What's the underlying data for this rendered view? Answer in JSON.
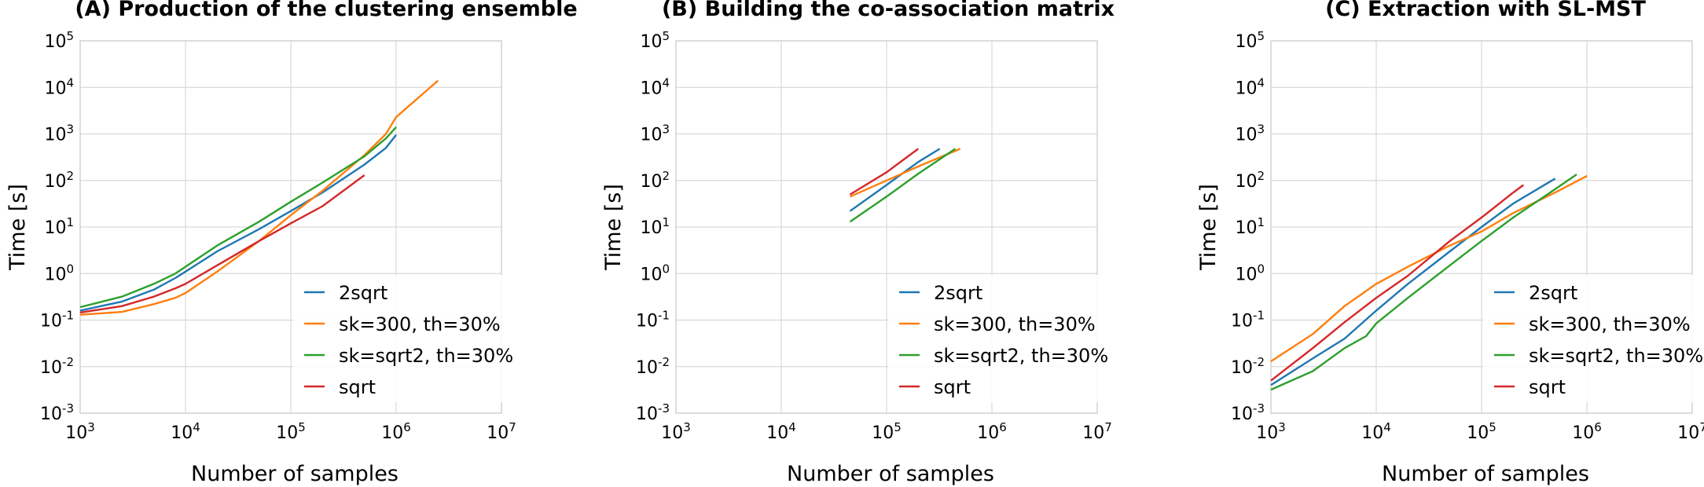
{
  "chart_data": [
    {
      "type": "line",
      "title": "(A) Production of the clustering ensemble",
      "xlabel": "Number of samples",
      "ylabel": "Time [s]",
      "xscale": "log",
      "yscale": "log",
      "xlim": [
        1000,
        10000000
      ],
      "ylim": [
        0.001,
        100000
      ],
      "xticks": [
        {
          "b": "10",
          "e": "3"
        },
        {
          "b": "10",
          "e": "4"
        },
        {
          "b": "10",
          "e": "5"
        },
        {
          "b": "10",
          "e": "6"
        },
        {
          "b": "10",
          "e": "7"
        }
      ],
      "yticks": [
        {
          "b": "10",
          "e": "-3"
        },
        {
          "b": "10",
          "e": "-2"
        },
        {
          "b": "10",
          "e": "-1"
        },
        {
          "b": "10",
          "e": "0"
        },
        {
          "b": "10",
          "e": "1"
        },
        {
          "b": "10",
          "e": "2"
        },
        {
          "b": "10",
          "e": "3"
        },
        {
          "b": "10",
          "e": "4"
        },
        {
          "b": "10",
          "e": "5"
        }
      ],
      "grid": true,
      "legend_position": "lower-right",
      "series": [
        {
          "name": "2sqrt",
          "color": "#1f77b4",
          "x": [
            1000,
            2500,
            5000,
            8000,
            10000,
            20000,
            50000,
            100000,
            200000,
            500000,
            800000,
            1000000
          ],
          "y": [
            0.16,
            0.25,
            0.45,
            0.8,
            1.1,
            3,
            9,
            22,
            55,
            220,
            500,
            950
          ]
        },
        {
          "name": "sk=300, th=30%",
          "color": "#ff7f0e",
          "x": [
            1000,
            2500,
            5000,
            8000,
            10000,
            20000,
            50000,
            100000,
            200000,
            500000,
            800000,
            1000000,
            2500000
          ],
          "y": [
            0.13,
            0.15,
            0.22,
            0.3,
            0.38,
            1.1,
            5,
            18,
            60,
            350,
            1000,
            2300,
            14000
          ]
        },
        {
          "name": "sk=sqrt2, th=30%",
          "color": "#2ca02c",
          "x": [
            1000,
            2500,
            5000,
            8000,
            10000,
            20000,
            50000,
            100000,
            200000,
            500000,
            800000,
            1000000
          ],
          "y": [
            0.19,
            0.32,
            0.6,
            1.0,
            1.4,
            4,
            13,
            35,
            90,
            330,
            800,
            1400
          ]
        },
        {
          "name": "sqrt",
          "color": "#d62728",
          "x": [
            1000,
            2500,
            5000,
            8000,
            10000,
            20000,
            50000,
            100000,
            200000,
            500000
          ],
          "y": [
            0.145,
            0.2,
            0.32,
            0.48,
            0.6,
            1.5,
            5,
            12,
            28,
            130
          ]
        }
      ]
    },
    {
      "type": "line",
      "title": "(B) Building the co-association matrix",
      "xlabel": "Number of samples",
      "ylabel": "Time [s]",
      "xscale": "log",
      "yscale": "log",
      "xlim": [
        1000,
        10000000
      ],
      "ylim": [
        0.001,
        100000
      ],
      "xticks": [
        {
          "b": "10",
          "e": "3"
        },
        {
          "b": "10",
          "e": "4"
        },
        {
          "b": "10",
          "e": "5"
        },
        {
          "b": "10",
          "e": "6"
        },
        {
          "b": "10",
          "e": "7"
        }
      ],
      "yticks": [
        {
          "b": "10",
          "e": "-3"
        },
        {
          "b": "10",
          "e": "-2"
        },
        {
          "b": "10",
          "e": "-1"
        },
        {
          "b": "10",
          "e": "0"
        },
        {
          "b": "10",
          "e": "1"
        },
        {
          "b": "10",
          "e": "2"
        },
        {
          "b": "10",
          "e": "3"
        },
        {
          "b": "10",
          "e": "4"
        },
        {
          "b": "10",
          "e": "5"
        }
      ],
      "grid": true,
      "legend_position": "lower-right",
      "series": [
        {
          "name": "2sqrt",
          "color": "#1f77b4",
          "x": [
            45000,
            100000,
            200000,
            320000
          ],
          "y": [
            22,
            80,
            250,
            480
          ]
        },
        {
          "name": "sk=300, th=30%",
          "color": "#ff7f0e",
          "x": [
            45000,
            100000,
            200000,
            500000
          ],
          "y": [
            45,
            100,
            200,
            480
          ]
        },
        {
          "name": "sk=sqrt2, th=30%",
          "color": "#2ca02c",
          "x": [
            45000,
            100000,
            200000,
            450000
          ],
          "y": [
            13,
            45,
            140,
            480
          ]
        },
        {
          "name": "sqrt",
          "color": "#d62728",
          "x": [
            45000,
            100000,
            200000
          ],
          "y": [
            50,
            150,
            480
          ]
        }
      ]
    },
    {
      "type": "line",
      "title": "(C) Extraction with SL-MST",
      "xlabel": "Number of samples",
      "ylabel": "Time [s]",
      "xscale": "log",
      "yscale": "log",
      "xlim": [
        1000,
        10000000
      ],
      "ylim": [
        0.001,
        100000
      ],
      "xticks": [
        {
          "b": "10",
          "e": "3"
        },
        {
          "b": "10",
          "e": "4"
        },
        {
          "b": "10",
          "e": "5"
        },
        {
          "b": "10",
          "e": "6"
        },
        {
          "b": "10",
          "e": "7"
        }
      ],
      "yticks": [
        {
          "b": "10",
          "e": "-3"
        },
        {
          "b": "10",
          "e": "-2"
        },
        {
          "b": "10",
          "e": "-1"
        },
        {
          "b": "10",
          "e": "0"
        },
        {
          "b": "10",
          "e": "1"
        },
        {
          "b": "10",
          "e": "2"
        },
        {
          "b": "10",
          "e": "3"
        },
        {
          "b": "10",
          "e": "4"
        },
        {
          "b": "10",
          "e": "5"
        }
      ],
      "grid": true,
      "legend_position": "lower-right",
      "series": [
        {
          "name": "2sqrt",
          "color": "#1f77b4",
          "x": [
            1000,
            2500,
            5000,
            10000,
            20000,
            50000,
            100000,
            200000,
            500000
          ],
          "y": [
            0.004,
            0.015,
            0.04,
            0.16,
            0.6,
            3,
            10,
            32,
            110
          ]
        },
        {
          "name": "sk=300, th=30%",
          "color": "#ff7f0e",
          "x": [
            1000,
            2500,
            5000,
            10000,
            20000,
            50000,
            100000,
            200000,
            500000,
            1000000
          ],
          "y": [
            0.013,
            0.05,
            0.2,
            0.6,
            1.4,
            4,
            8,
            20,
            55,
            125
          ]
        },
        {
          "name": "sk=sqrt2, th=30%",
          "color": "#2ca02c",
          "x": [
            1000,
            2500,
            5000,
            8000,
            10000,
            20000,
            50000,
            100000,
            200000,
            500000,
            800000
          ],
          "y": [
            0.0032,
            0.008,
            0.025,
            0.045,
            0.085,
            0.3,
            1.5,
            5,
            16,
            65,
            135
          ]
        },
        {
          "name": "sqrt",
          "color": "#d62728",
          "x": [
            1000,
            2500,
            5000,
            10000,
            20000,
            50000,
            100000,
            200000,
            250000
          ],
          "y": [
            0.005,
            0.025,
            0.09,
            0.3,
            0.9,
            5,
            16,
            55,
            80
          ]
        }
      ]
    }
  ]
}
